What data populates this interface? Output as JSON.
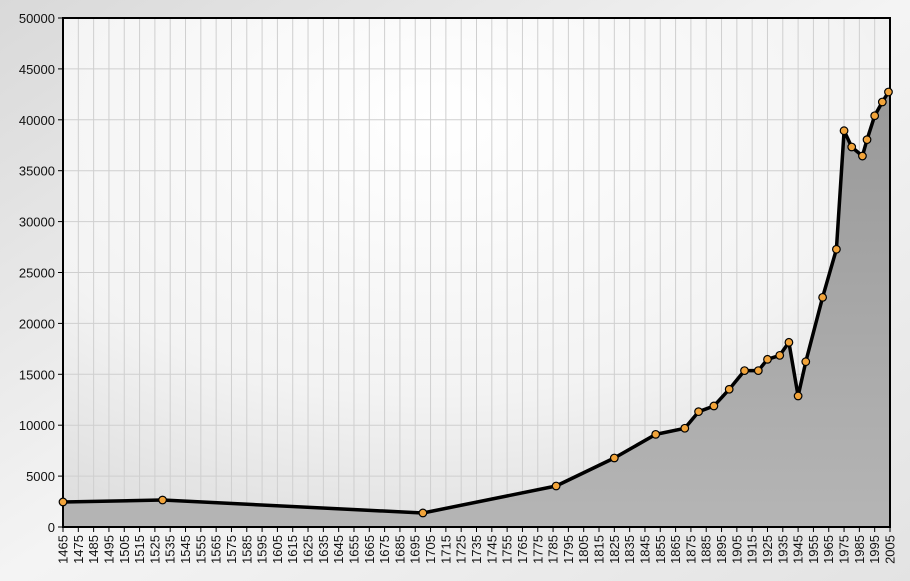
{
  "chart_data": {
    "type": "area",
    "title": "",
    "xlabel": "",
    "ylabel": "",
    "xlim": [
      1465,
      2005
    ],
    "ylim": [
      0,
      50000
    ],
    "grid": true,
    "legend": "none",
    "x_ticks": [
      1465,
      1475,
      1485,
      1495,
      1505,
      1515,
      1525,
      1535,
      1545,
      1555,
      1565,
      1575,
      1585,
      1595,
      1605,
      1615,
      1625,
      1635,
      1645,
      1655,
      1665,
      1675,
      1685,
      1695,
      1705,
      1715,
      1725,
      1735,
      1745,
      1755,
      1765,
      1775,
      1785,
      1795,
      1805,
      1815,
      1825,
      1835,
      1845,
      1855,
      1865,
      1875,
      1885,
      1895,
      1905,
      1915,
      1925,
      1935,
      1945,
      1955,
      1965,
      1975,
      1985,
      1995,
      2005
    ],
    "y_ticks": [
      0,
      5000,
      10000,
      15000,
      20000,
      25000,
      30000,
      35000,
      40000,
      45000,
      50000
    ],
    "x": [
      1465,
      1530,
      1700,
      1787,
      1825,
      1852,
      1871,
      1880,
      1890,
      1900,
      1910,
      1919,
      1925,
      1933,
      1939,
      1945,
      1950,
      1961,
      1970,
      1975,
      1980,
      1987,
      1990,
      1995,
      2000,
      2004
    ],
    "values": [
      2460,
      2650,
      1380,
      4030,
      6780,
      9100,
      9700,
      11330,
      11890,
      13530,
      15360,
      15360,
      16470,
      16860,
      18140,
      12870,
      16240,
      22560,
      27280,
      38930,
      37330,
      36440,
      38050,
      40400,
      41750,
      42730
    ],
    "colors": {
      "line": "#000000",
      "marker": "#f2a43a",
      "fill": "#a9a9a9"
    }
  }
}
